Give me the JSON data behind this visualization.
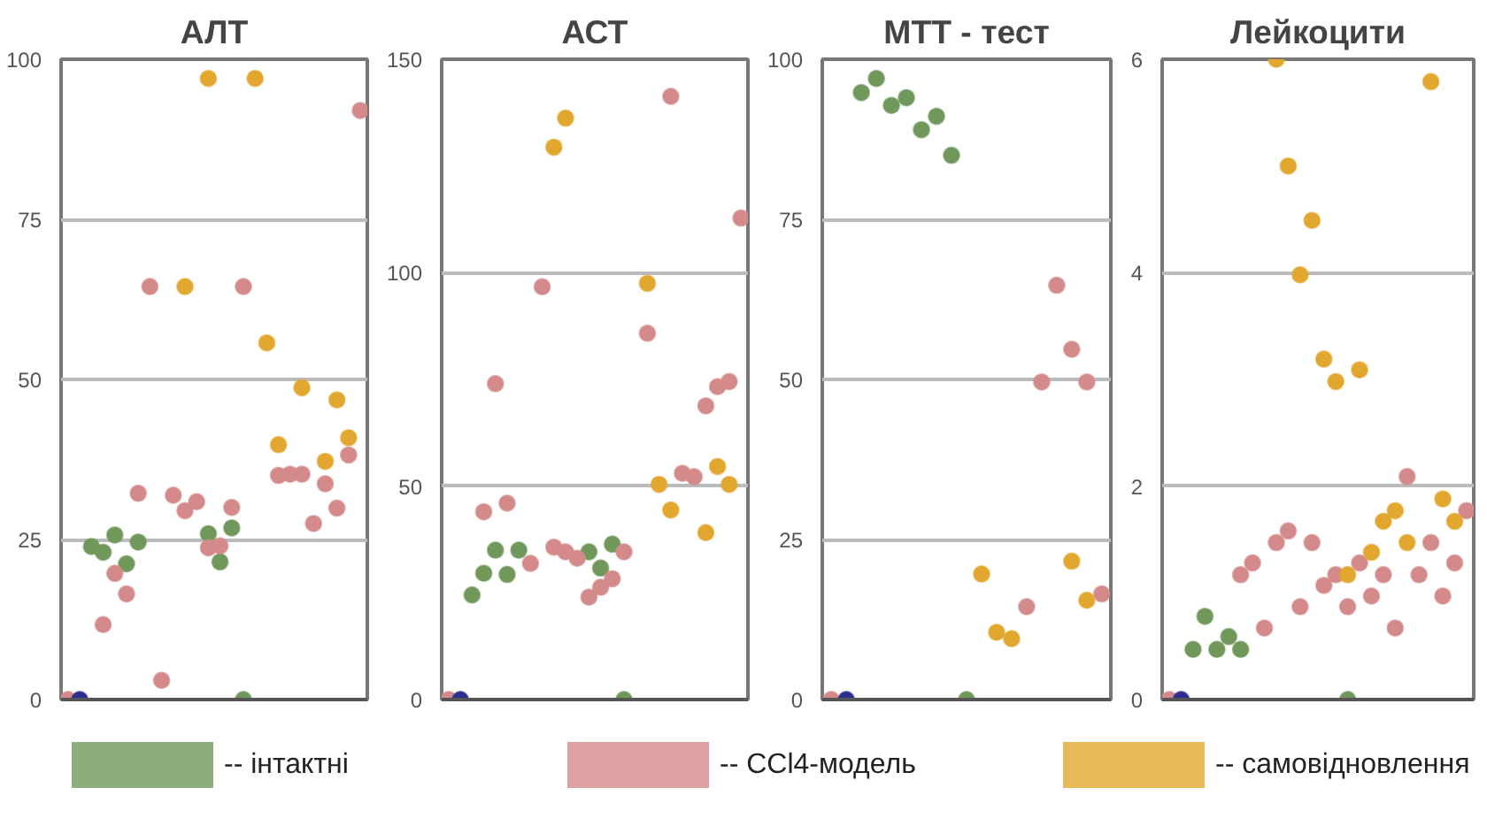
{
  "chart_data": [
    {
      "type": "scatter",
      "title": "АЛТ",
      "categories": [
        null,
        null,
        null,
        null,
        null,
        null,
        null,
        null,
        null,
        null,
        null,
        null,
        null,
        null,
        null,
        null,
        null,
        null,
        null,
        null,
        null,
        null,
        null,
        null,
        null,
        null
      ],
      "ylim": [
        0,
        100
      ],
      "yticks": [
        0,
        25,
        50,
        75,
        100
      ],
      "grid": "y",
      "marker": "circle",
      "legend": "bottom",
      "series": [
        {
          "name": "-- інтактні",
          "color": "#70985a",
          "values": [
            null,
            null,
            23.9,
            23,
            25.7,
            21.2,
            24.6,
            null,
            null,
            null,
            null,
            null,
            25.9,
            21.5,
            26.8,
            0,
            null,
            null,
            null,
            null,
            null,
            null,
            null,
            null,
            null,
            null
          ]
        },
        {
          "name": "-- CCl4-модель",
          "color": "#d48a8a",
          "values": [
            0,
            null,
            null,
            11.7,
            19.7,
            16.5,
            32.2,
            64.5,
            3,
            31.9,
            29.5,
            30.9,
            23.7,
            24,
            30,
            64.5,
            null,
            null,
            35,
            35.2,
            35.2,
            27.5,
            33.7,
            29.9,
            38.2,
            92
          ]
        },
        {
          "name": "-- самовідновлення",
          "color": "#e2a72e",
          "values": [
            null,
            null,
            null,
            null,
            null,
            null,
            null,
            null,
            null,
            null,
            64.5,
            null,
            97,
            null,
            null,
            null,
            97,
            55.7,
            39.8,
            null,
            48.7,
            null,
            37.2,
            46.8,
            40.9,
            null
          ]
        },
        {
          "color": "#2b2f8f",
          "values": [
            null,
            0,
            null,
            null,
            null,
            null,
            null,
            null,
            null,
            null,
            null,
            null,
            null,
            null,
            null,
            null,
            null,
            null,
            null,
            null,
            null,
            null,
            null,
            null,
            null,
            null
          ]
        }
      ]
    },
    {
      "type": "scatter",
      "title": "АСТ",
      "categories": [
        null,
        null,
        null,
        null,
        null,
        null,
        null,
        null,
        null,
        null,
        null,
        null,
        null,
        null,
        null,
        null,
        null,
        null,
        null,
        null,
        null,
        null,
        null,
        null,
        null,
        null
      ],
      "ylim": [
        0,
        150
      ],
      "yticks": [
        0,
        50,
        100,
        150
      ],
      "grid": "y",
      "marker": "circle",
      "series": [
        {
          "color": "#70985a",
          "values": [
            null,
            null,
            24.5,
            29.6,
            35,
            29.3,
            35,
            null,
            null,
            null,
            null,
            null,
            34.6,
            30.8,
            36.4,
            0,
            null,
            null,
            null,
            null,
            null,
            null,
            null,
            null,
            null,
            null
          ]
        },
        {
          "color": "#d48a8a",
          "values": [
            0,
            null,
            null,
            44,
            74,
            46,
            null,
            31.9,
            96.7,
            35.7,
            34.6,
            33.1,
            24,
            26.3,
            28.3,
            34.6,
            null,
            85.8,
            null,
            141.3,
            53,
            52.2,
            68.8,
            73.3,
            74.5,
            112.8
          ]
        },
        {
          "color": "#e2a72e",
          "values": [
            null,
            null,
            null,
            null,
            null,
            null,
            null,
            null,
            null,
            129.4,
            136.2,
            null,
            null,
            null,
            null,
            null,
            null,
            97.5,
            50.4,
            44.4,
            null,
            null,
            39.1,
            54.6,
            50.4,
            null
          ]
        },
        {
          "color": "#2b2f8f",
          "values": [
            null,
            0,
            null,
            null,
            null,
            null,
            null,
            null,
            null,
            null,
            null,
            null,
            null,
            null,
            null,
            null,
            null,
            null,
            null,
            null,
            null,
            null,
            null,
            null,
            null,
            null
          ]
        }
      ]
    },
    {
      "type": "scatter",
      "title": "МТТ - тест",
      "categories": [
        null,
        null,
        null,
        null,
        null,
        null,
        null,
        null,
        null,
        null,
        null,
        null,
        null,
        null,
        null,
        null,
        null,
        null,
        null
      ],
      "ylim": [
        0,
        100
      ],
      "yticks": [
        0,
        25,
        50,
        75,
        100
      ],
      "grid": "y",
      "marker": "circle",
      "series": [
        {
          "color": "#70985a",
          "values": [
            null,
            null,
            94.8,
            97,
            92.8,
            94,
            89,
            91.1,
            85,
            0,
            null,
            null,
            null,
            null,
            null,
            null,
            null,
            null,
            null
          ]
        },
        {
          "color": "#d48a8a",
          "values": [
            0,
            null,
            null,
            null,
            null,
            null,
            null,
            null,
            null,
            null,
            null,
            null,
            null,
            14.5,
            49.6,
            64.7,
            54.7,
            49.6,
            16.5
          ]
        },
        {
          "color": "#e2a72e",
          "values": [
            null,
            null,
            null,
            null,
            null,
            null,
            null,
            null,
            null,
            null,
            19.6,
            10.5,
            9.5,
            null,
            null,
            null,
            21.6,
            15.5,
            null
          ]
        },
        {
          "color": "#2b2f8f",
          "values": [
            null,
            0,
            null,
            null,
            null,
            null,
            null,
            null,
            null,
            null,
            null,
            null,
            null,
            null,
            null,
            null,
            null,
            null,
            null
          ]
        }
      ]
    },
    {
      "type": "scatter",
      "title": "Лейкоцити",
      "categories": [
        null,
        null,
        null,
        null,
        null,
        null,
        null,
        null,
        null,
        null,
        null,
        null,
        null,
        null,
        null,
        null,
        null,
        null,
        null,
        null,
        null,
        null,
        null,
        null,
        null,
        null
      ],
      "ylim": [
        0,
        6
      ],
      "yticks": [
        0,
        2,
        4,
        6
      ],
      "grid": "y",
      "marker": "circle",
      "series": [
        {
          "color": "#70985a",
          "values": [
            null,
            null,
            0.47,
            0.78,
            0.47,
            0.59,
            0.47,
            null,
            null,
            null,
            null,
            null,
            null,
            null,
            null,
            0,
            null,
            null,
            null,
            null,
            null,
            null,
            null,
            null,
            null,
            null
          ]
        },
        {
          "color": "#d48a8a",
          "values": [
            0,
            null,
            null,
            null,
            null,
            null,
            1.17,
            1.28,
            0.67,
            1.47,
            1.58,
            0.87,
            1.47,
            1.07,
            1.17,
            0.87,
            1.28,
            0.97,
            1.17,
            0.67,
            2.09,
            1.17,
            1.47,
            0.97,
            1.28,
            1.77
          ]
        },
        {
          "color": "#e2a72e",
          "values": [
            null,
            null,
            null,
            null,
            null,
            null,
            null,
            null,
            null,
            6.0,
            5.0,
            3.98,
            4.49,
            3.19,
            2.98,
            1.17,
            3.09,
            1.38,
            1.67,
            1.77,
            1.47,
            null,
            5.79,
            1.88,
            1.67,
            null
          ]
        },
        {
          "color": "#2b2f8f",
          "values": [
            null,
            0,
            null,
            null,
            null,
            null,
            null,
            null,
            null,
            null,
            null,
            null,
            null,
            null,
            null,
            null,
            null,
            null,
            null,
            null,
            null,
            null,
            null,
            null,
            null,
            null
          ]
        }
      ]
    }
  ]
}
